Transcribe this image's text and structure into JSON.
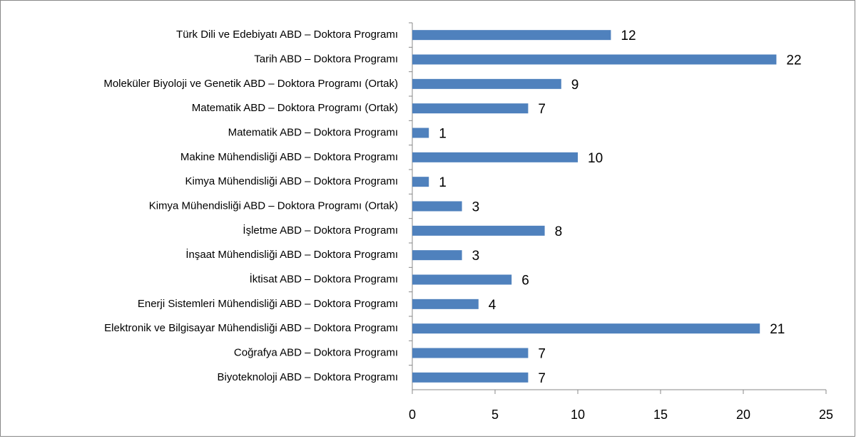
{
  "chart_data": {
    "type": "bar",
    "orientation": "horizontal",
    "categories": [
      "Türk Dili ve Edebiyatı ABD – Doktora Programı",
      "Tarih ABD – Doktora Programı",
      "Moleküler Biyoloji ve Genetik ABD – Doktora Programı (Ortak)",
      "Matematik ABD – Doktora Programı (Ortak)",
      "Matematik ABD – Doktora Programı",
      "Makine Mühendisliği ABD – Doktora Programı",
      "Kimya Mühendisliği ABD – Doktora Programı",
      "Kimya Mühendisliği ABD – Doktora Programı (Ortak)",
      "İşletme ABD – Doktora Programı",
      "İnşaat Mühendisliği ABD – Doktora Programı",
      "İktisat ABD – Doktora Programı",
      "Enerji Sistemleri Mühendisliği ABD – Doktora Programı",
      "Elektronik ve Bilgisayar Mühendisliği ABD – Doktora Programı",
      "Coğrafya ABD – Doktora Programı",
      "Biyoteknoloji ABD – Doktora Programı"
    ],
    "values": [
      12,
      22,
      9,
      7,
      1,
      10,
      1,
      3,
      8,
      3,
      6,
      4,
      21,
      7,
      7
    ],
    "color": "#4f81bd",
    "xlim": [
      0,
      25
    ],
    "xticks": [
      0,
      5,
      10,
      15,
      20,
      25
    ],
    "grid": false
  }
}
